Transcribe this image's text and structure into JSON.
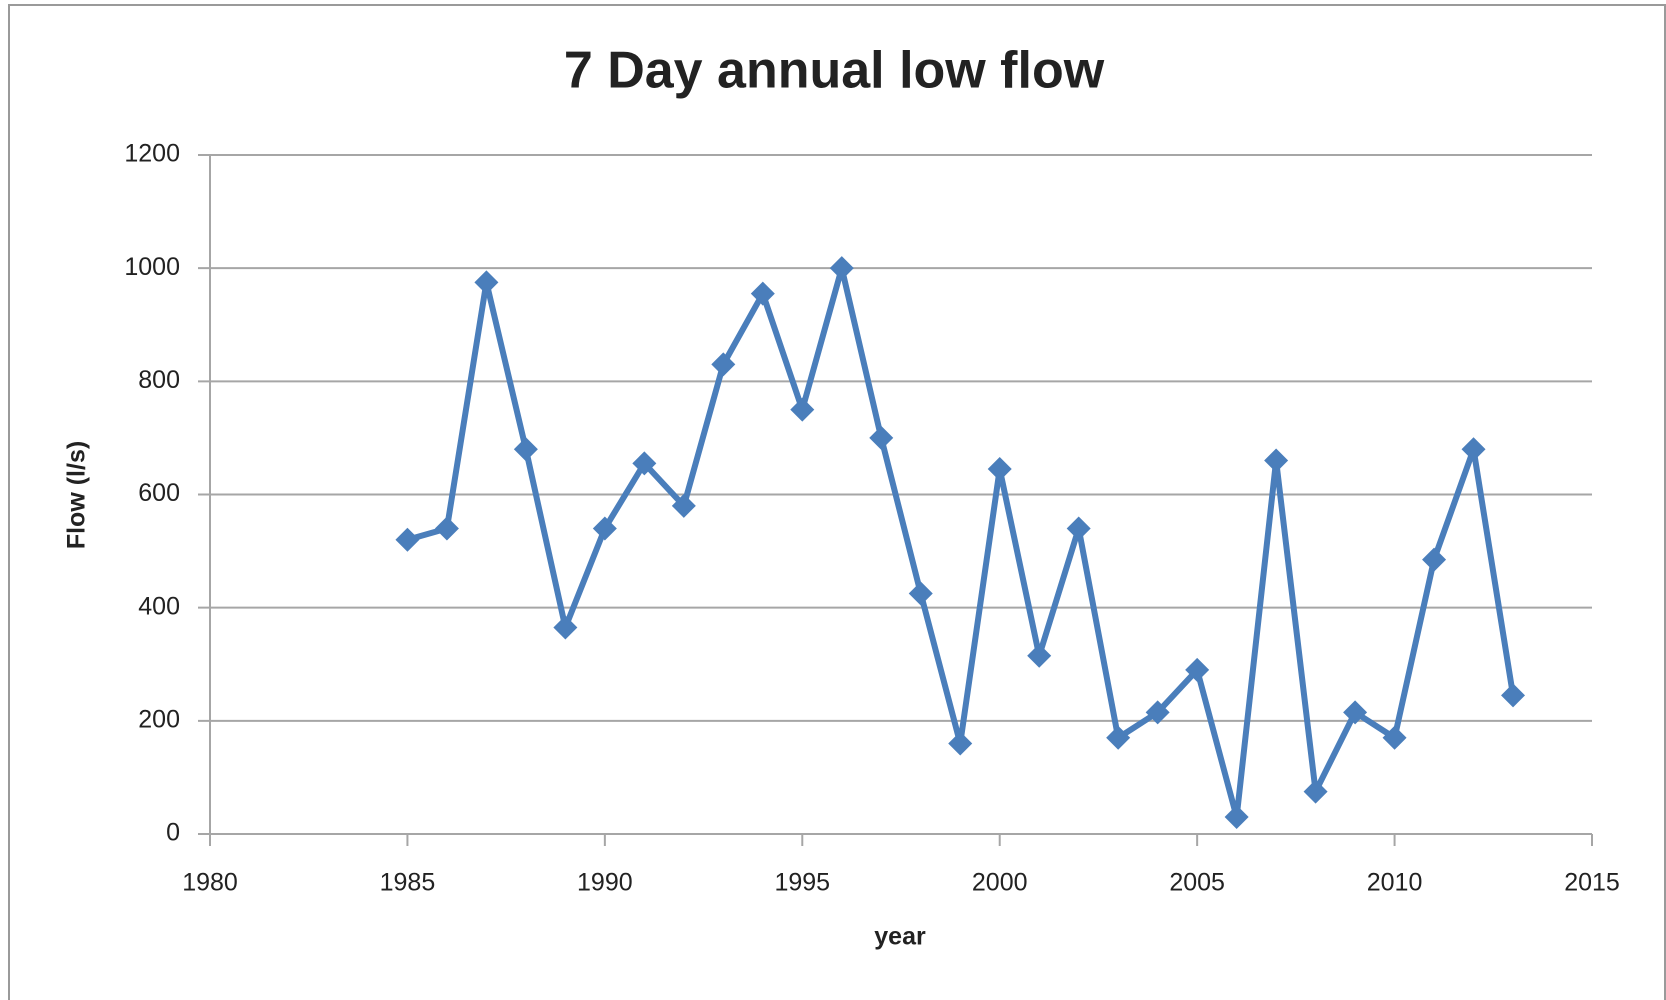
{
  "chart_data": {
    "type": "line",
    "title": "7 Day annual low flow",
    "xlabel": "year",
    "ylabel": "Flow  (l/s)",
    "x": [
      1985,
      1986,
      1987,
      1988,
      1989,
      1990,
      1991,
      1992,
      1993,
      1994,
      1995,
      1996,
      1997,
      1998,
      1999,
      2000,
      2001,
      2002,
      2003,
      2004,
      2005,
      2006,
      2007,
      2008,
      2009,
      2010,
      2011,
      2012,
      2013
    ],
    "series": [
      {
        "name": "7 Day annual low flow",
        "color": "#4a7ebb",
        "values": [
          520,
          540,
          975,
          680,
          365,
          540,
          655,
          580,
          830,
          955,
          750,
          1000,
          700,
          425,
          160,
          645,
          315,
          540,
          170,
          215,
          290,
          30,
          660,
          75,
          215,
          170,
          485,
          680,
          245
        ]
      }
    ],
    "xlim": [
      1980,
      2015
    ],
    "xticks": [
      1980,
      1985,
      1990,
      1995,
      2000,
      2005,
      2010,
      2015
    ],
    "ylim": [
      0,
      1200
    ],
    "yticks": [
      0,
      200,
      400,
      600,
      800,
      1000,
      1200
    ],
    "grid": true
  }
}
